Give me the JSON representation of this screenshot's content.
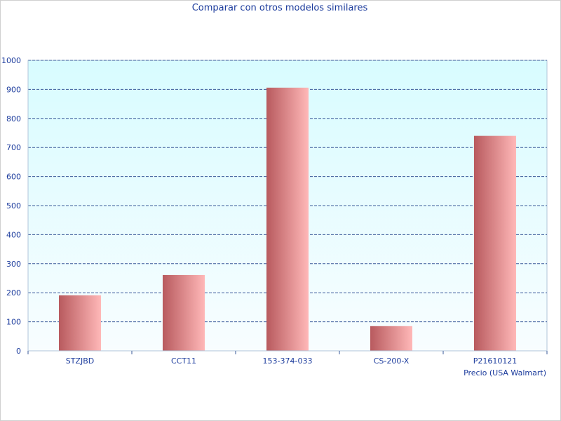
{
  "chart_data": {
    "type": "bar",
    "title": "Comparar con otros modelos similares",
    "xlabel": "Precio (USA Walmart)",
    "ylabel": "",
    "categories": [
      "STZJBD",
      "CCT11",
      "153-374-033",
      "CS-200-X",
      "P21610121"
    ],
    "values": [
      191,
      261,
      906,
      85,
      740
    ],
    "ylim": [
      0,
      1000
    ],
    "yticks": [
      0,
      100,
      200,
      300,
      400,
      500,
      600,
      700,
      800,
      900,
      1000
    ],
    "grid": true,
    "legend": "none"
  },
  "colors": {
    "bar_dark": "#b85a5e",
    "bar_light": "#ffb8b8",
    "plot_bg_top": "#d8fcff",
    "plot_bg_bottom": "#f8fdff",
    "grid": "#3a5a9a",
    "text": "#1a3a9c",
    "axis": "#b0c4d8"
  }
}
